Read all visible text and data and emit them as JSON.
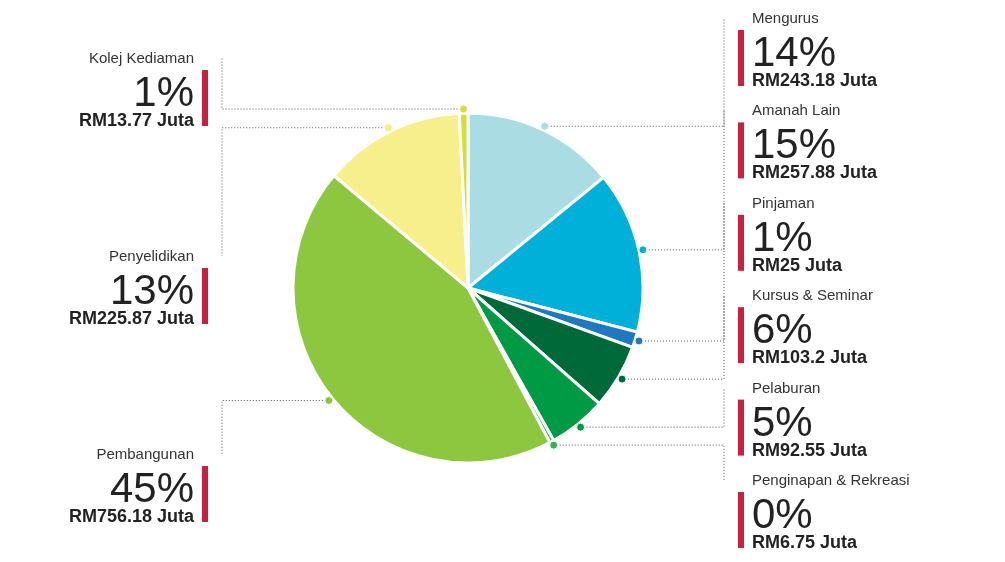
{
  "chart_data": {
    "type": "pie",
    "categories": [
      "Mengurus",
      "Amanah Lain",
      "Pinjaman",
      "Kursus & Seminar",
      "Pelaburan",
      "Penginapan & Rekreasi",
      "Pembangunan",
      "Penyelidikan",
      "Kolej Kediaman"
    ],
    "values": [
      243.18,
      257.88,
      25,
      103.2,
      92.55,
      6.75,
      756.18,
      225.87,
      13.77
    ],
    "value_labels": [
      "14% RM243.18 Juta",
      "15% RM257.88 Juta",
      "1% RM25 Juta",
      "6% RM103.2 Juta",
      "5% RM92.55 Juta",
      "0% RM6.75 Juta",
      "45% RM756.18 Juta",
      "13% RM225.87 Juta",
      "1% RM13.77 Juta"
    ],
    "colors": [
      "#aadde3",
      "#00b0d8",
      "#1f78c1",
      "#00693a",
      "#009a44",
      "#2fb34a",
      "#8dc63f",
      "#f6ef8c",
      "#d6e034"
    ]
  }
}
